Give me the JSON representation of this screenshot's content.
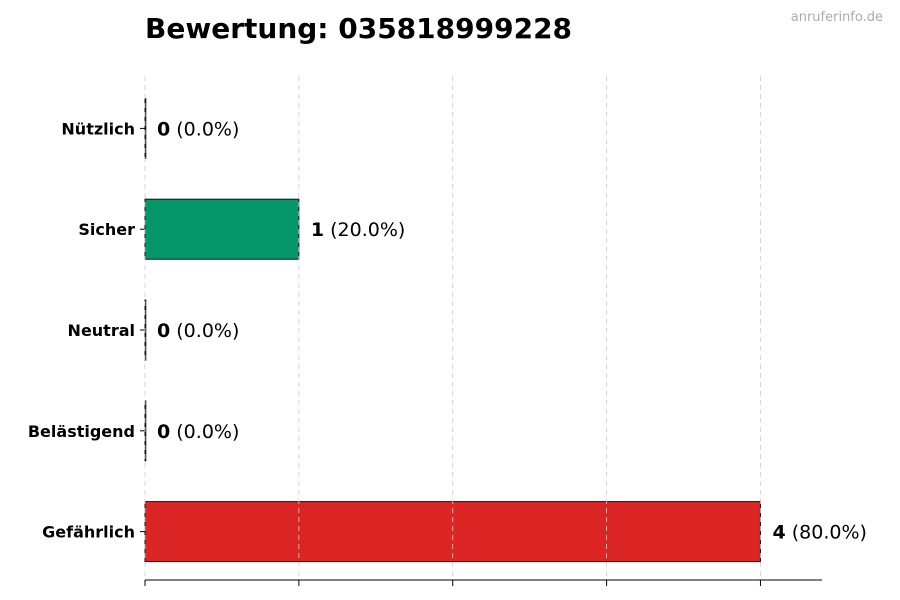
{
  "title": "Bewertung: 035818999228",
  "watermark": "anruferinfo.de",
  "chart_data": {
    "type": "bar",
    "orientation": "horizontal",
    "title": "Bewertung: 035818999228",
    "categories": [
      "Nützlich",
      "Sicher",
      "Neutral",
      "Belästigend",
      "Gefährlich"
    ],
    "values": [
      0,
      1,
      0,
      0,
      4
    ],
    "percent_labels": [
      "(0.0%)",
      "(20.0%)",
      "(0.0%)",
      "(0.0%)",
      "(80.0%)"
    ],
    "colors": [
      "#6b7280",
      "#059669",
      "#6b7280",
      "#6b7280",
      "#dc2626"
    ],
    "xlim": [
      0,
      4.4
    ],
    "xticks": [
      0,
      1,
      2,
      3,
      4
    ],
    "xtick_labels_shown": false,
    "grid": "x-dashed",
    "xlabel": "",
    "ylabel": ""
  }
}
